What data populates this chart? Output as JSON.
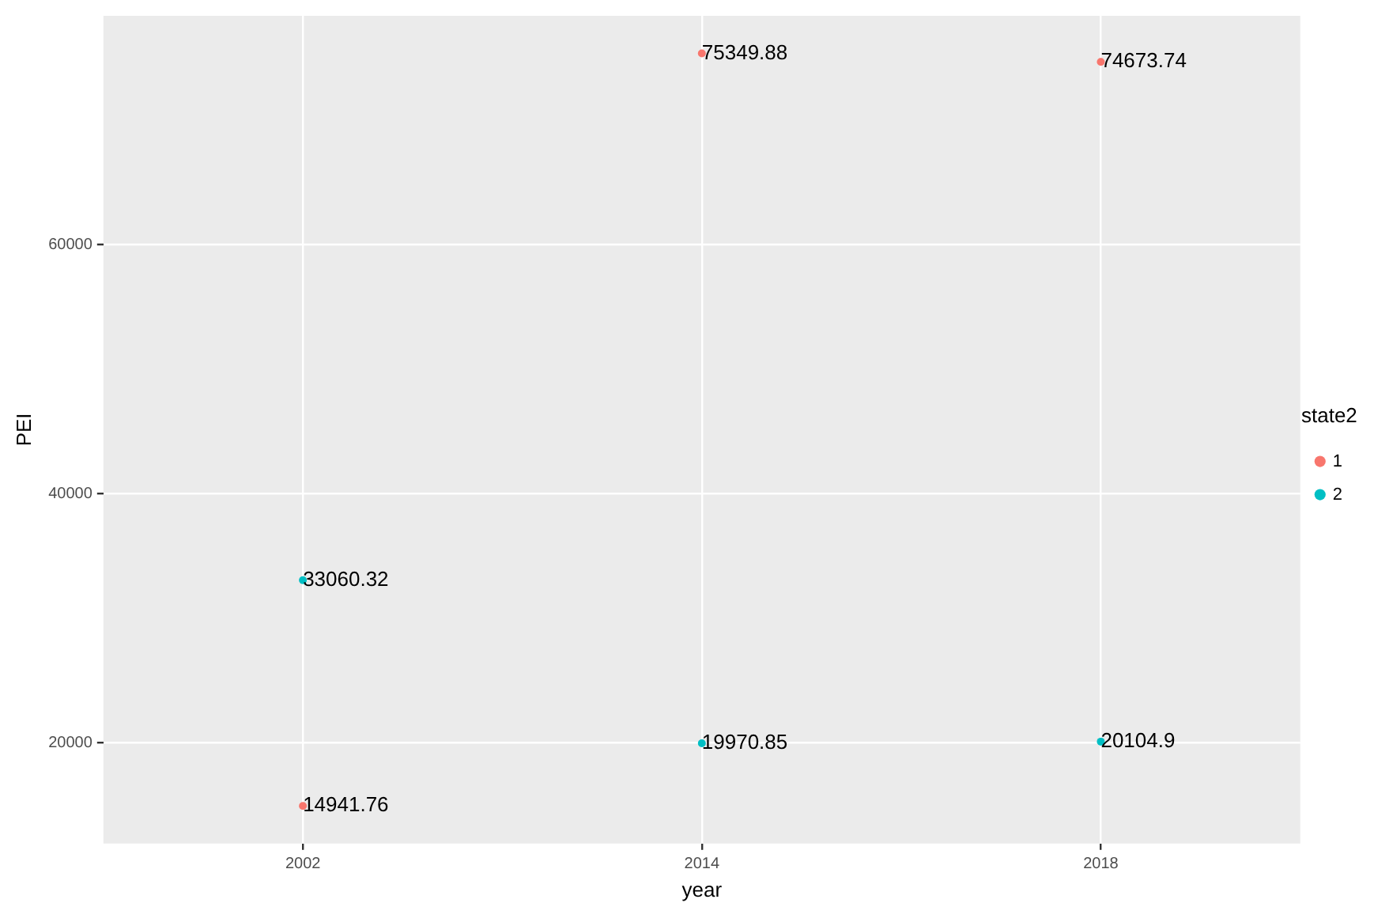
{
  "chart_data": {
    "type": "scatter",
    "xlabel": "year",
    "ylabel": "PEI",
    "legend_title": "state2",
    "categories": [
      "2002",
      "2014",
      "2018"
    ],
    "series": [
      {
        "name": "1",
        "color": "#f8766d",
        "values": [
          14941.76,
          75349.88,
          74673.74
        ]
      },
      {
        "name": "2",
        "color": "#00bfc4",
        "values": [
          33060.32,
          19970.85,
          20104.9
        ]
      }
    ],
    "ylim": [
      11921,
      78370
    ],
    "yticks": [
      20000,
      40000,
      60000
    ],
    "data_labels": true,
    "grid": true,
    "legend": "right",
    "marker": "circle"
  }
}
